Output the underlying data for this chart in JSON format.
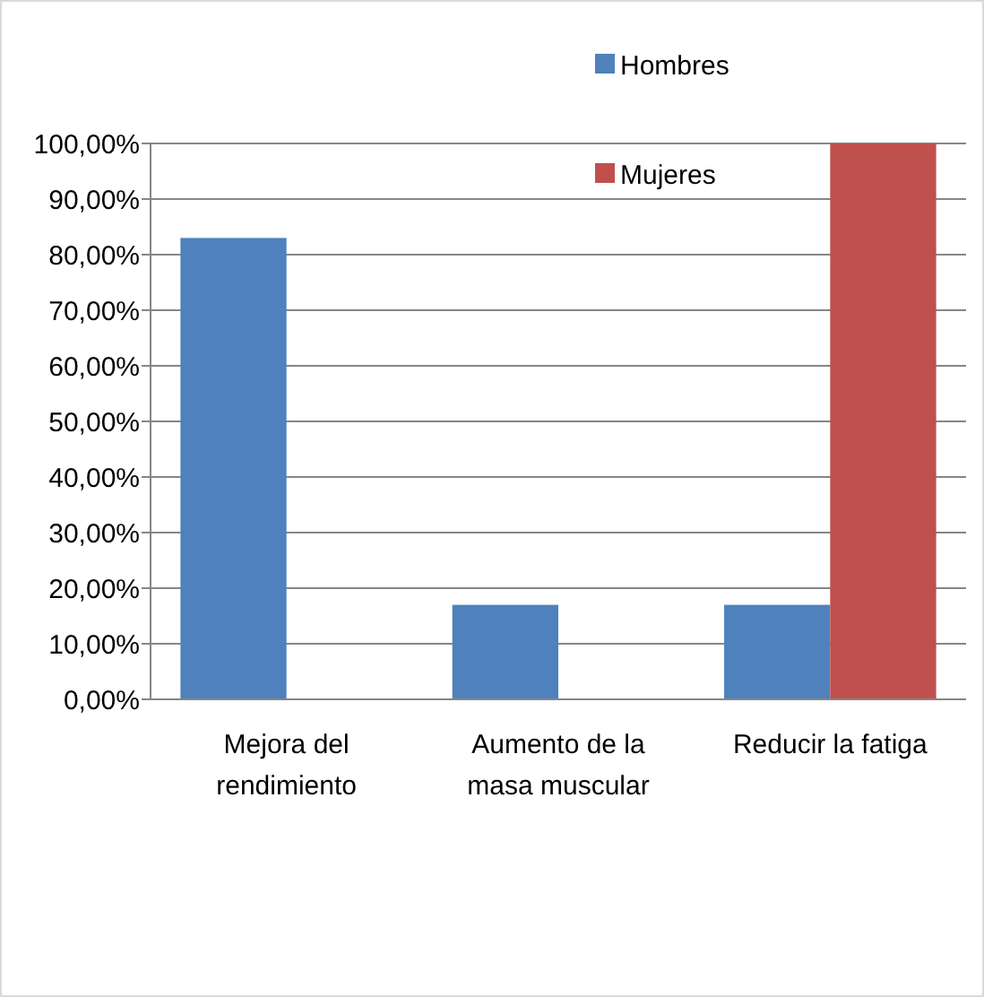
{
  "chart_data": {
    "type": "bar",
    "categories": [
      "Mejora del rendimiento",
      "Aumento de la masa muscular",
      "Reducir la fatiga"
    ],
    "series": [
      {
        "name": "Hombres",
        "color": "#4f81bd",
        "values": [
          83,
          17,
          17
        ]
      },
      {
        "name": "Mujeres",
        "color": "#c0504d",
        "values": [
          0,
          0,
          100
        ]
      }
    ],
    "ylim": [
      0,
      100
    ],
    "yticks": [
      {
        "value": 0,
        "label": "0,00%"
      },
      {
        "value": 10,
        "label": "10,00%"
      },
      {
        "value": 20,
        "label": "20,00%"
      },
      {
        "value": 30,
        "label": "30,00%"
      },
      {
        "value": 40,
        "label": "40,00%"
      },
      {
        "value": 50,
        "label": "50,00%"
      },
      {
        "value": 60,
        "label": "60,00%"
      },
      {
        "value": 70,
        "label": "70,00%"
      },
      {
        "value": 80,
        "label": "80,00%"
      },
      {
        "value": 90,
        "label": "90,00%"
      },
      {
        "value": 100,
        "label": "100,00%"
      }
    ],
    "grid": "y",
    "legend": "top right"
  }
}
